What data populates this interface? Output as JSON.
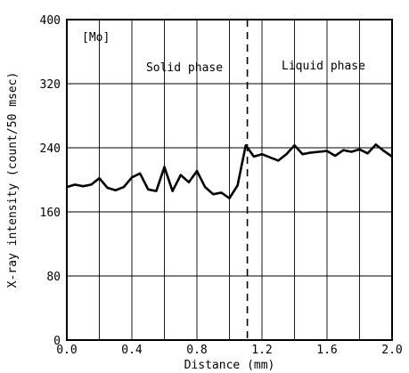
{
  "chart_data": {
    "type": "line",
    "title": "",
    "xlabel": "Distance (mm)",
    "ylabel": "X-ray intensity (count/50 msec)",
    "xlim": [
      0.0,
      2.0
    ],
    "ylim": [
      0,
      400
    ],
    "x_ticks": [
      "0.0",
      "0.4",
      "0.8",
      "1.2",
      "1.6",
      "2.0"
    ],
    "x_tick_values": [
      0.0,
      0.4,
      0.8,
      1.2,
      1.6,
      2.0
    ],
    "y_ticks": [
      "0",
      "80",
      "160",
      "240",
      "320",
      "400"
    ],
    "y_tick_values": [
      0,
      80,
      160,
      240,
      320,
      400
    ],
    "grid": true,
    "x_minor_grid_values": [
      0.2,
      0.6,
      1.0,
      1.4,
      1.8
    ],
    "annotations": {
      "element": "[Mo]",
      "solid": "Solid phase",
      "liquid": "Liquid phase"
    },
    "boundary_x": 1.11,
    "series": [
      {
        "x": [
          0.0,
          0.05,
          0.1,
          0.15,
          0.2,
          0.25,
          0.3,
          0.35,
          0.4,
          0.45,
          0.5,
          0.55,
          0.6,
          0.65,
          0.7,
          0.75,
          0.8,
          0.85,
          0.9,
          0.95,
          1.0,
          1.05,
          1.1,
          1.15,
          1.2,
          1.25,
          1.3,
          1.35,
          1.4,
          1.45,
          1.5,
          1.55,
          1.6,
          1.65,
          1.7,
          1.75,
          1.8,
          1.85,
          1.9,
          1.95,
          2.0
        ],
        "y": [
          191,
          194,
          192,
          194,
          202,
          190,
          187,
          191,
          203,
          208,
          188,
          186,
          216,
          186,
          206,
          197,
          211,
          191,
          182,
          184,
          177,
          193,
          243,
          229,
          232,
          228,
          224,
          232,
          243,
          232,
          234,
          235,
          236,
          230,
          237,
          235,
          238,
          233,
          244,
          236,
          229
        ]
      }
    ]
  }
}
